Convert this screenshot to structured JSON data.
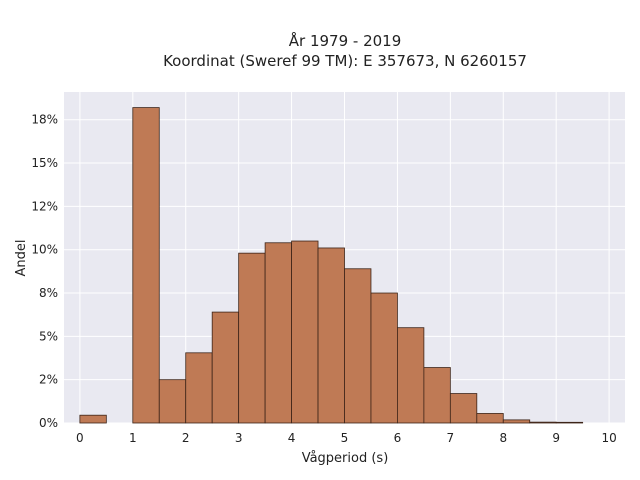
{
  "chart_data": {
    "type": "bar",
    "title_line1": "År 1979 - 2019",
    "title_line2": "Koordinat (Sweref 99 TM): E 357673, N 6260157",
    "xlabel": "Vågperiod (s)",
    "ylabel": "Andel",
    "bin_width": 0.5,
    "bin_starts": [
      0,
      0.5,
      1,
      1.5,
      2,
      2.5,
      3,
      3.5,
      4,
      4.5,
      5,
      5.5,
      6,
      6.5,
      7,
      7.5,
      8,
      8.5,
      9,
      9.5
    ],
    "values": [
      0.45,
      0,
      18.2,
      2.5,
      4.05,
      6.4,
      9.8,
      10.4,
      10.5,
      10.1,
      8.9,
      7.5,
      5.5,
      3.2,
      1.7,
      0.55,
      0.18,
      0.05,
      0.04,
      0
    ],
    "xlim": [
      -0.3,
      10.3
    ],
    "ylim": [
      0,
      19.1
    ],
    "xticks": [
      0,
      1,
      2,
      3,
      4,
      5,
      6,
      7,
      8,
      9,
      10
    ],
    "xtick_labels": [
      "0",
      "1",
      "2",
      "3",
      "4",
      "5",
      "6",
      "7",
      "8",
      "9",
      "10"
    ],
    "yticks": [
      0,
      2.5,
      5,
      7.5,
      10,
      12.5,
      15,
      17.5
    ],
    "ytick_labels": [
      "0%",
      "2%",
      "5%",
      "8%",
      "10%",
      "12%",
      "15%",
      "18%"
    ],
    "grid": true,
    "colors": {
      "bar_fill": "#bf7a55",
      "bar_edge": "#3d2418",
      "plot_bg": "#e9e9f1",
      "grid": "#ffffff"
    }
  }
}
